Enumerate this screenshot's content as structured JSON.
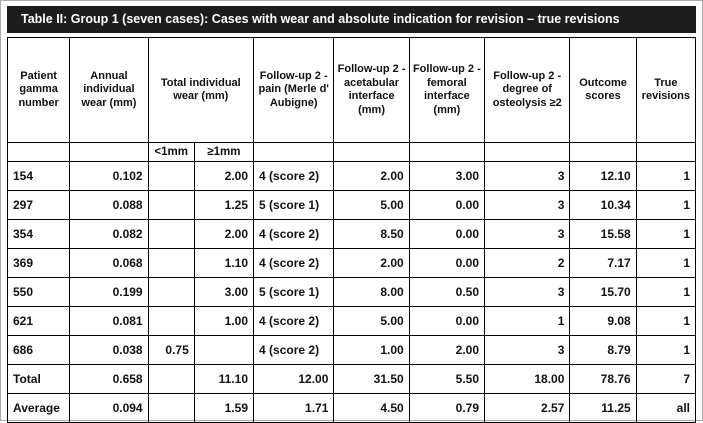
{
  "page": {
    "title": "Table II: Group 1 (seven cases): Cases with wear and absolute indication for revision – true revisions"
  },
  "table": {
    "headers": {
      "patient": "Patient gamma number",
      "annual": "Annual individual wear (mm)",
      "total_wear": "Total individual wear (mm)",
      "pain": "Follow-up 2 -  pain (Merle d' Aubigne)",
      "acetabular": "Follow-up 2 - acetabular interface (mm)",
      "femoral": "Follow-up 2 - femoral interface (mm)",
      "osteolysis": "Follow-up 2 -  degree of osteolysis ≥2",
      "outcome": "Outcome scores",
      "revisions": "True revisions",
      "sub_less": "<1mm",
      "sub_greater": "≥1mm"
    },
    "rows": [
      {
        "cells": [
          "154",
          "0.102",
          "",
          "2.00",
          "4 (score 2)",
          "2.00",
          "3.00",
          "3",
          "12.10",
          "1"
        ],
        "bold": false
      },
      {
        "cells": [
          "297",
          "0.088",
          "",
          "1.25",
          "5 (score 1)",
          "5.00",
          "0.00",
          "3",
          "10.34",
          "1"
        ],
        "bold": false
      },
      {
        "cells": [
          "354",
          "0.082",
          "",
          "2.00",
          "4 (score 2)",
          "8.50",
          "0.00",
          "3",
          "15.58",
          "1"
        ],
        "bold": false
      },
      {
        "cells": [
          "369",
          "0.068",
          "",
          "1.10",
          "4 (score 2)",
          "2.00",
          "0.00",
          "2",
          "7.17",
          "1"
        ],
        "bold": false
      },
      {
        "cells": [
          "550",
          "0.199",
          "",
          "3.00",
          "5 (score 1)",
          "8.00",
          "0.50",
          "3",
          "15.70",
          "1"
        ],
        "bold": false
      },
      {
        "cells": [
          "621",
          "0.081",
          "",
          "1.00",
          "4 (score 2)",
          "5.00",
          "0.00",
          "1",
          "9.08",
          "1"
        ],
        "bold": false
      },
      {
        "cells": [
          "686",
          "0.038",
          "0.75",
          "",
          "4 (score 2)",
          "1.00",
          "2.00",
          "3",
          "8.79",
          "1"
        ],
        "bold": false
      },
      {
        "cells": [
          "Total",
          "0.658",
          "",
          "11.10",
          "12.00",
          "31.50",
          "5.50",
          "18.00",
          "78.76",
          "7"
        ],
        "bold": true
      },
      {
        "cells": [
          "Average",
          "0.094",
          "",
          "1.59",
          "1.71",
          "4.50",
          "0.79",
          "2.57",
          "11.25",
          "all"
        ],
        "bold": true
      }
    ]
  }
}
